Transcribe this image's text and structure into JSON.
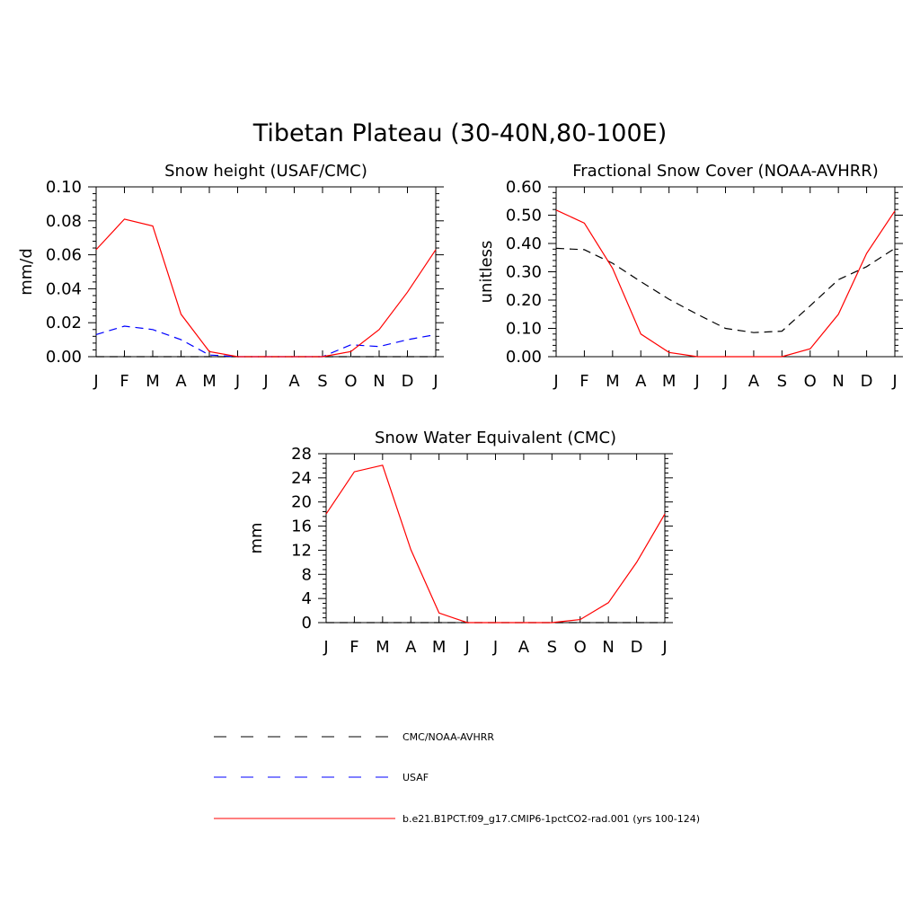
{
  "figure": {
    "title": "Tibetan Plateau (30-40N,80-100E)"
  },
  "colors": {
    "obs": "#000000",
    "usaf": "#0000ff",
    "model": "#ff0000"
  },
  "legend": [
    {
      "label": "CMC/NOAA-AVHRR",
      "style": "dashed",
      "color": "#000000"
    },
    {
      "label": "USAF",
      "style": "dashed",
      "color": "#0000ff"
    },
    {
      "label": "b.e21.B1PCT.f09_g17.CMIP6-1pctCO2-rad.001 (yrs 100-124)",
      "style": "solid",
      "color": "#ff0000"
    }
  ],
  "chart_data": [
    {
      "type": "line",
      "title": "Snow height (USAF/CMC)",
      "ylabel": "mm/d",
      "xlabel": "",
      "categories": [
        "J",
        "F",
        "M",
        "A",
        "M",
        "J",
        "J",
        "A",
        "S",
        "O",
        "N",
        "D",
        "J"
      ],
      "ylim": [
        0,
        0.1
      ],
      "yticks": [
        0.0,
        0.02,
        0.04,
        0.06,
        0.08,
        0.1
      ],
      "ytick_labels": [
        "0.00",
        "0.02",
        "0.04",
        "0.06",
        "0.08",
        "0.10"
      ],
      "series": [
        {
          "name": "CMC/NOAA-AVHRR",
          "values": [
            0,
            0,
            0,
            0,
            0,
            0,
            0,
            0,
            0,
            0,
            0,
            0,
            0
          ],
          "style": "dashed",
          "color": "#000000"
        },
        {
          "name": "USAF",
          "values": [
            0.013,
            0.018,
            0.016,
            0.01,
            0.001,
            0,
            0,
            0,
            0,
            0.007,
            0.006,
            0.01,
            0.013
          ],
          "style": "dashed",
          "color": "#0000ff"
        },
        {
          "name": "b.e21.B1PCT.f09_g17.CMIP6-1pctCO2-rad.001 (yrs 100-124)",
          "values": [
            0.063,
            0.081,
            0.077,
            0.025,
            0.003,
            0,
            0,
            0,
            0,
            0.003,
            0.016,
            0.038,
            0.063
          ],
          "style": "solid",
          "color": "#ff0000"
        }
      ]
    },
    {
      "type": "line",
      "title": "Fractional Snow Cover (NOAA-AVHRR)",
      "ylabel": "unitless",
      "xlabel": "",
      "categories": [
        "J",
        "F",
        "M",
        "A",
        "M",
        "J",
        "J",
        "A",
        "S",
        "O",
        "N",
        "D",
        "J"
      ],
      "ylim": [
        0,
        0.6
      ],
      "yticks": [
        0.0,
        0.1,
        0.2,
        0.3,
        0.4,
        0.5,
        0.6
      ],
      "ytick_labels": [
        "0.00",
        "0.10",
        "0.20",
        "0.30",
        "0.40",
        "0.50",
        "0.60"
      ],
      "series": [
        {
          "name": "CMC/NOAA-AVHRR",
          "values": [
            0.383,
            0.378,
            0.33,
            0.265,
            0.203,
            0.15,
            0.1,
            0.085,
            0.09,
            0.18,
            0.272,
            0.318,
            0.383
          ],
          "style": "dashed",
          "color": "#000000"
        },
        {
          "name": "b.e21.B1PCT.f09_g17.CMIP6-1pctCO2-rad.001 (yrs 100-124)",
          "values": [
            0.518,
            0.472,
            0.312,
            0.08,
            0.015,
            0,
            0,
            0,
            0,
            0.028,
            0.15,
            0.365,
            0.515
          ],
          "style": "solid",
          "color": "#ff0000"
        }
      ]
    },
    {
      "type": "line",
      "title": "Snow Water Equivalent (CMC)",
      "ylabel": "mm",
      "xlabel": "",
      "categories": [
        "J",
        "F",
        "M",
        "A",
        "M",
        "J",
        "J",
        "A",
        "S",
        "O",
        "N",
        "D",
        "J"
      ],
      "ylim": [
        0,
        28
      ],
      "yticks": [
        0,
        4,
        8,
        12,
        16,
        20,
        24,
        28
      ],
      "ytick_labels": [
        "0",
        "4",
        "8",
        "12",
        "16",
        "20",
        "24",
        "28"
      ],
      "series": [
        {
          "name": "CMC/NOAA-AVHRR",
          "values": [
            0,
            0,
            0,
            0,
            0,
            0,
            0,
            0,
            0,
            0,
            0,
            0,
            0
          ],
          "style": "dashed",
          "color": "#000000"
        },
        {
          "name": "b.e21.B1PCT.f09_g17.CMIP6-1pctCO2-rad.001 (yrs 100-124)",
          "values": [
            18.0,
            25.0,
            26.1,
            12.1,
            1.6,
            0,
            0,
            0,
            0,
            0.5,
            3.3,
            10.0,
            18.0
          ],
          "style": "solid",
          "color": "#ff0000"
        }
      ]
    }
  ]
}
